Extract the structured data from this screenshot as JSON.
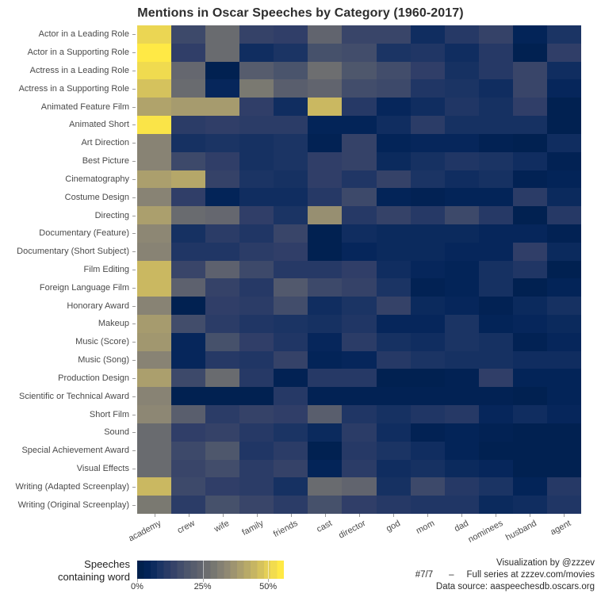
{
  "title": "Mentions in Oscar Speeches by Category (1960-2017)",
  "legend": {
    "label_line1": "Speeches",
    "label_line2": "containing word",
    "ticks": [
      {
        "value": 0,
        "label": "0%"
      },
      {
        "value": 25,
        "label": "25%"
      },
      {
        "value": 50,
        "label": "50%"
      }
    ]
  },
  "footer": {
    "credit": "Visualization by @zzzev",
    "issue": "#7/7",
    "separator": "–",
    "series": "Full series at zzzev.com/movies",
    "source": "Data source: aaspeechesdb.oscars.org"
  },
  "chart_data": {
    "type": "heatmap",
    "title": "Mentions in Oscar Speeches by Category (1960-2017)",
    "x_categories": [
      "academy",
      "crew",
      "wife",
      "family",
      "friends",
      "cast",
      "director",
      "god",
      "mom",
      "dad",
      "nominees",
      "husband",
      "agent"
    ],
    "y_categories": [
      "Actor in a Leading Role",
      "Actor in a Supporting Role",
      "Actress in a Leading Role",
      "Actress in a Supporting Role",
      "Animated Feature Film",
      "Animated Short",
      "Art Direction",
      "Best Picture",
      "Cinematography",
      "Costume Design",
      "Directing",
      "Documentary (Feature)",
      "Documentary (Short Subject)",
      "Film Editing",
      "Foreign Language Film",
      "Honorary Award",
      "Makeup",
      "Music (Score)",
      "Music (Song)",
      "Production Design",
      "Scientific or Technical Award",
      "Short Film",
      "Sound",
      "Special Achievement Award",
      "Visual Effects",
      "Writing (Adapted Screenplay)",
      "Writing (Original Screenplay)"
    ],
    "value_unit": "percent of speeches containing word",
    "values": [
      [
        52,
        15,
        26,
        13,
        12,
        24,
        14,
        14,
        6,
        10,
        13,
        3,
        8
      ],
      [
        56,
        12,
        26,
        6,
        8,
        17,
        16,
        8,
        9,
        6,
        10,
        1,
        12
      ],
      [
        53,
        25,
        1,
        21,
        18,
        27,
        19,
        16,
        12,
        7,
        10,
        14,
        6
      ],
      [
        48,
        26,
        4,
        30,
        22,
        24,
        16,
        15,
        9,
        8,
        6,
        14,
        4
      ],
      [
        41,
        39,
        39,
        12,
        6,
        46,
        10,
        4,
        6,
        9,
        7,
        12,
        1
      ],
      [
        55,
        11,
        12,
        11,
        11,
        3,
        3,
        6,
        11,
        7,
        7,
        7,
        1
      ],
      [
        33,
        7,
        8,
        7,
        8,
        2,
        13,
        3,
        4,
        4,
        2,
        1,
        6
      ],
      [
        33,
        15,
        12,
        7,
        8,
        12,
        13,
        5,
        7,
        9,
        8,
        6,
        2
      ],
      [
        40,
        42,
        13,
        8,
        7,
        12,
        9,
        13,
        8,
        6,
        7,
        2,
        3
      ],
      [
        33,
        12,
        3,
        6,
        6,
        10,
        15,
        3,
        2,
        3,
        3,
        11,
        5
      ],
      [
        40,
        26,
        25,
        12,
        8,
        36,
        10,
        13,
        10,
        15,
        10,
        1,
        10
      ],
      [
        34,
        7,
        11,
        9,
        14,
        1,
        6,
        5,
        5,
        5,
        4,
        4,
        2
      ],
      [
        33,
        9,
        9,
        11,
        12,
        1,
        4,
        5,
        5,
        4,
        4,
        12,
        5
      ],
      [
        46,
        14,
        23,
        15,
        10,
        10,
        12,
        6,
        4,
        3,
        7,
        9,
        1
      ],
      [
        46,
        23,
        13,
        10,
        20,
        15,
        13,
        8,
        2,
        3,
        7,
        1,
        3
      ],
      [
        33,
        1,
        12,
        11,
        16,
        6,
        8,
        13,
        5,
        4,
        2,
        5,
        7
      ],
      [
        39,
        16,
        11,
        9,
        8,
        7,
        9,
        4,
        4,
        8,
        3,
        4,
        5
      ],
      [
        38,
        4,
        17,
        12,
        9,
        4,
        11,
        7,
        6,
        8,
        7,
        2,
        4
      ],
      [
        33,
        4,
        10,
        9,
        13,
        3,
        4,
        10,
        8,
        7,
        7,
        6,
        6
      ],
      [
        40,
        15,
        26,
        10,
        2,
        10,
        10,
        1,
        1,
        2,
        12,
        3,
        3
      ],
      [
        33,
        1,
        1,
        1,
        10,
        2,
        2,
        2,
        2,
        2,
        2,
        1,
        3
      ],
      [
        34,
        22,
        11,
        13,
        12,
        22,
        9,
        7,
        9,
        10,
        4,
        6,
        4
      ],
      [
        26,
        12,
        13,
        10,
        8,
        5,
        11,
        6,
        2,
        3,
        2,
        1,
        1
      ],
      [
        26,
        15,
        19,
        9,
        11,
        1,
        10,
        8,
        6,
        3,
        1,
        1,
        1
      ],
      [
        26,
        14,
        16,
        11,
        13,
        3,
        11,
        6,
        7,
        5,
        4,
        1,
        1
      ],
      [
        46,
        15,
        12,
        11,
        7,
        26,
        24,
        7,
        15,
        10,
        8,
        3,
        10
      ],
      [
        30,
        11,
        17,
        14,
        11,
        17,
        12,
        10,
        9,
        9,
        5,
        6,
        9
      ]
    ],
    "scale": {
      "min": 0,
      "max": 56,
      "colormap": "cividis",
      "stops": [
        [
          0.0,
          "#00204D"
        ],
        [
          0.06,
          "#032459"
        ],
        [
          0.13,
          "#173263"
        ],
        [
          0.22,
          "#323F68"
        ],
        [
          0.32,
          "#4A546C"
        ],
        [
          0.42,
          "#5F626E"
        ],
        [
          0.5,
          "#717270"
        ],
        [
          0.6,
          "#8B8574"
        ],
        [
          0.7,
          "#A79C6E"
        ],
        [
          0.8,
          "#C3B264"
        ],
        [
          0.9,
          "#E3CE58"
        ],
        [
          1.0,
          "#FFE945"
        ]
      ]
    },
    "layout": {
      "grid": false,
      "legend_position": "bottom-left",
      "x_label_rotation_deg": -28
    }
  }
}
